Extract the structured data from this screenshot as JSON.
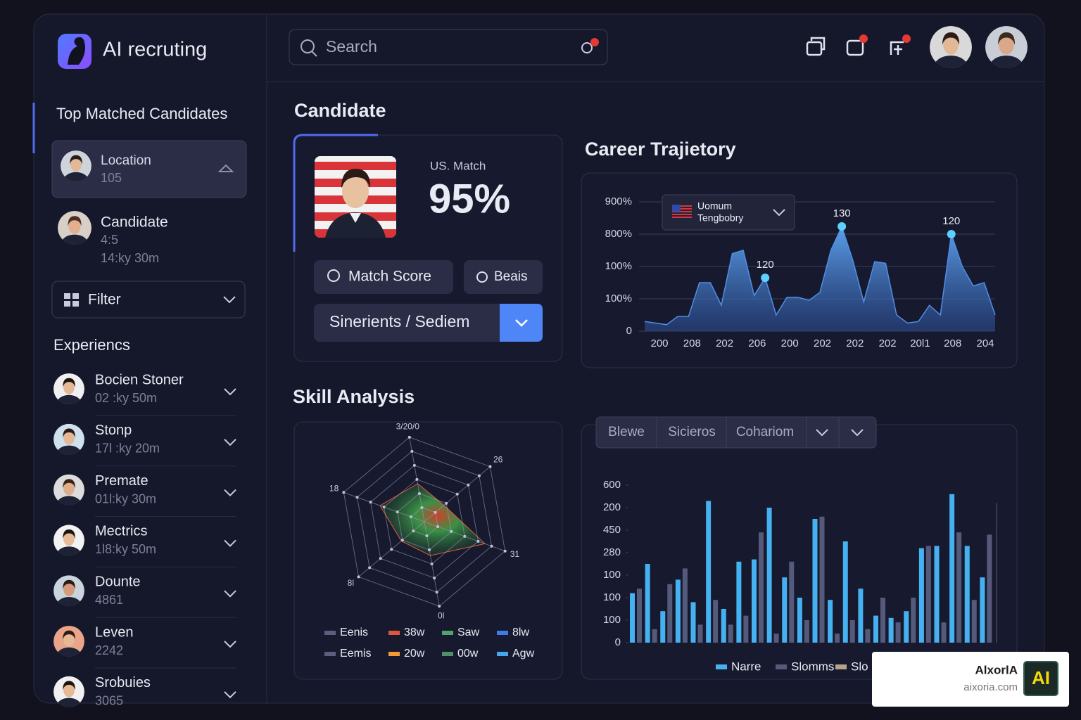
{
  "app": {
    "name": "AI recruting"
  },
  "search": {
    "placeholder": "Search"
  },
  "sidebar": {
    "title": "Top Matched Candidates",
    "top": [
      {
        "name": "Location",
        "detail": [
          "105"
        ]
      },
      {
        "name": "Candidate",
        "detail": [
          "4:5",
          "14:ky 30m"
        ]
      }
    ],
    "filter": "Filter",
    "experience_title": "Experiencs",
    "experiences": [
      {
        "name": "Bocien Stoner",
        "detail": "02 :ky 50m"
      },
      {
        "name": "Stonp",
        "detail": "17l :ky 20m"
      },
      {
        "name": "Premate",
        "detail": "01l:ky 30m"
      },
      {
        "name": "Mectrics",
        "detail": "1l8:ky 50m"
      },
      {
        "name": "Dounte",
        "detail": "4861"
      },
      {
        "name": "Leven",
        "detail": "2242"
      },
      {
        "name": "Srobuies",
        "detail": "3065"
      }
    ]
  },
  "candidate": {
    "title": "Candidate",
    "match_label": "US. Match",
    "match_value": "95%",
    "buttons": [
      "Match Score",
      "Beais"
    ],
    "select": "Sinerients / Sediem"
  },
  "career_chart": {
    "type": "area",
    "title": "Career Trajietory",
    "dropdown": [
      "Uomum",
      "Tengbobry"
    ],
    "color": "#4f8fe6",
    "ylim": [
      0,
      4
    ],
    "yticks": [
      0,
      {
        "value": 1,
        "label": "100%"
      },
      {
        "value": 2,
        "label": "100%"
      },
      {
        "value": 3,
        "label": "800%"
      },
      {
        "value": 4,
        "label": "900%"
      }
    ],
    "grid": true,
    "x_labels": [
      "200",
      "208",
      "202",
      "206",
      "200",
      "202",
      "202",
      "202",
      "20l1",
      "208",
      "204"
    ],
    "values": [
      0.3,
      0.25,
      0.2,
      0.45,
      0.45,
      1.5,
      1.5,
      0.8,
      2.4,
      2.5,
      1.1,
      1.65,
      0.5,
      1.05,
      1.05,
      0.95,
      1.2,
      2.5,
      3.24,
      2.2,
      0.9,
      2.15,
      2.1,
      0.5,
      0.25,
      0.3,
      0.8,
      0.5,
      3.0,
      2.0,
      1.4,
      1.5,
      0.5
    ],
    "value_labels": [
      null,
      null,
      null,
      null,
      null,
      null,
      null,
      null,
      null,
      null,
      null,
      "120",
      null,
      null,
      null,
      null,
      null,
      null,
      "130",
      null,
      null,
      null,
      null,
      null,
      null,
      null,
      null,
      null,
      "120",
      null,
      null,
      null,
      null
    ]
  },
  "skill_chart": {
    "type": "radar",
    "title": "Skill Analysis",
    "axes": [
      "3/20/0",
      "26",
      "31",
      "0l",
      "8l",
      "18"
    ],
    "values": [
      0.45,
      0.3,
      0.75,
      0.4,
      0.35,
      0.55
    ],
    "rlim": [
      0,
      1
    ],
    "legend": [
      {
        "name": "Eenis",
        "color": "#5a5f80"
      },
      {
        "name": "38w",
        "color": "#e0553d"
      },
      {
        "name": "Saw",
        "color": "#4fa36b"
      },
      {
        "name": "8lw",
        "color": "#3a7de8"
      },
      {
        "name": "Eemis",
        "color": "#5a5f80"
      },
      {
        "name": "20w",
        "color": "#f29a38"
      },
      {
        "name": "00w",
        "color": "#4f8f6a"
      },
      {
        "name": "Agw",
        "color": "#45a6f0"
      }
    ]
  },
  "bar_chart": {
    "type": "bar",
    "tabs": [
      "Blewe",
      "Sicieros",
      "Cohariom"
    ],
    "ylim": [
      0,
      7
    ],
    "yticks": [
      0,
      {
        "value": 1,
        "label": "100"
      },
      {
        "value": 2,
        "label": "100"
      },
      {
        "value": 3,
        "label": "100"
      },
      {
        "value": 4,
        "label": "280"
      },
      {
        "value": 5,
        "label": "450"
      },
      {
        "value": 6,
        "label": "200"
      },
      {
        "value": 7,
        "label": "600"
      }
    ],
    "series": [
      {
        "name": "Narre",
        "color": "#46b1f0",
        "values": [
          2.2,
          3.5,
          1.4,
          2.8,
          1.8,
          6.3,
          1.5,
          3.6,
          3.7,
          6.0,
          2.9,
          2.0,
          5.5,
          1.9,
          4.5,
          2.4,
          1.2,
          1.1,
          1.4,
          4.2,
          4.3,
          6.6,
          4.3,
          2.9
        ]
      },
      {
        "name": "Slomms",
        "color": "#55597a",
        "values": [
          2.4,
          0.6,
          2.6,
          3.3,
          0.8,
          1.9,
          0.8,
          1.2,
          4.9,
          0.4,
          3.6,
          1.0,
          5.6,
          0.4,
          1.0,
          0.6,
          2.0,
          0.9,
          2.0,
          4.3,
          0.9,
          4.9,
          1.9,
          4.8
        ]
      },
      {
        "name": "Slo",
        "color": "#b5a48a",
        "values": [
          null,
          null,
          null,
          null,
          null,
          null,
          null,
          null,
          null,
          null,
          null,
          null,
          null,
          null,
          null,
          null,
          null,
          null,
          null,
          null,
          null,
          null,
          null,
          null
        ]
      }
    ]
  },
  "watermark": {
    "brand": "AlxorlA",
    "site": "aixoria.com",
    "logo": "AI"
  }
}
